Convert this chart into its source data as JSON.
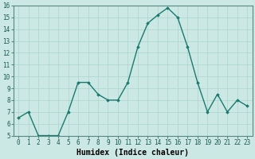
{
  "x": [
    0,
    1,
    2,
    3,
    4,
    5,
    6,
    7,
    8,
    9,
    10,
    11,
    12,
    13,
    14,
    15,
    16,
    17,
    18,
    19,
    20,
    21,
    22,
    23
  ],
  "y": [
    6.5,
    7.0,
    5.0,
    5.0,
    5.0,
    7.0,
    9.5,
    9.5,
    8.5,
    8.0,
    8.0,
    9.5,
    12.5,
    14.5,
    15.2,
    15.8,
    15.0,
    12.5,
    9.5,
    7.0,
    8.5,
    7.0,
    8.0,
    7.5
  ],
  "xlabel": "Humidex (Indice chaleur)",
  "ylim": [
    5,
    16
  ],
  "yticks": [
    5,
    6,
    7,
    8,
    9,
    10,
    11,
    12,
    13,
    14,
    15,
    16
  ],
  "xticks": [
    0,
    1,
    2,
    3,
    4,
    5,
    6,
    7,
    8,
    9,
    10,
    11,
    12,
    13,
    14,
    15,
    16,
    17,
    18,
    19,
    20,
    21,
    22,
    23
  ],
  "line_color": "#1a7a6e",
  "marker": "D",
  "marker_size": 1.8,
  "line_width": 1.0,
  "bg_color": "#cce8e4",
  "grid_color": "#aad4ce",
  "xlabel_fontsize": 7,
  "tick_fontsize": 5.5
}
